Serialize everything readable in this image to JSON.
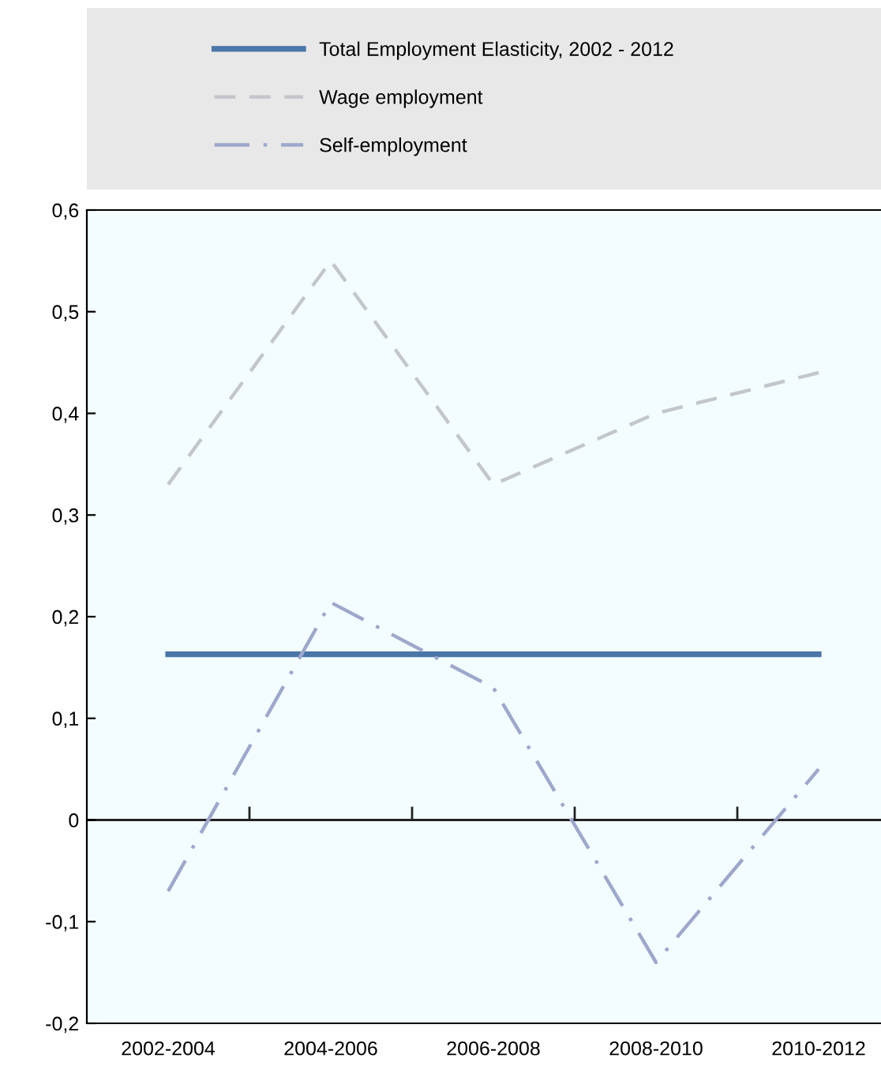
{
  "chart_data": {
    "type": "line",
    "categories": [
      "2002-2004",
      "2004-2006",
      "2006-2008",
      "2008-2010",
      "2010-2012"
    ],
    "series": [
      {
        "name": "Total Employment Elasticity, 2002 - 2012",
        "color": "#4a76a8",
        "line_style": "solid",
        "values": [
          0.163,
          0.163,
          0.163,
          0.163,
          0.163
        ]
      },
      {
        "name": "Wage employment",
        "color": "#c3c6ca",
        "line_style": "dashed",
        "values": [
          0.33,
          0.55,
          0.33,
          0.4,
          0.44
        ]
      },
      {
        "name": "Self-employment",
        "color": "#9ea8cc",
        "line_style": "dashdot",
        "values": [
          -0.07,
          0.214,
          0.13,
          -0.14,
          0.05
        ]
      }
    ],
    "ylim": [
      -0.2,
      0.6
    ],
    "yticks": [
      {
        "value": -0.2,
        "label": "-0,2"
      },
      {
        "value": -0.1,
        "label": "-0,1"
      },
      0,
      {
        "value": 0.1,
        "label": "0,1"
      },
      {
        "value": 0.2,
        "label": "0,2"
      },
      {
        "value": 0.3,
        "label": "0,3"
      },
      {
        "value": 0.4,
        "label": "0,4"
      },
      {
        "value": 0.5,
        "label": "0,5"
      },
      {
        "value": 0.6,
        "label": "0,6"
      }
    ],
    "ref_lines": [
      {
        "axis": "y",
        "value": 0,
        "color": "#222222"
      }
    ],
    "legend": "top",
    "grid": false,
    "marker": "none"
  }
}
